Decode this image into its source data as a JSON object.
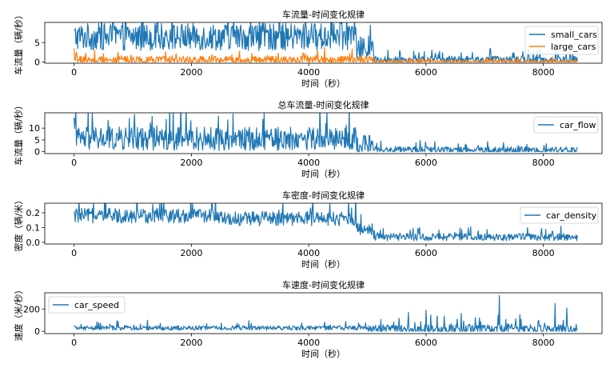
{
  "chart_data": [
    {
      "type": "line",
      "title": "车流量-时间变化规律",
      "xlabel": "时间（秒）",
      "ylabel": "车流量（辆/秒）",
      "xlim": [
        -500,
        9000
      ],
      "ylim": [
        -0.3,
        10.2
      ],
      "xticks": [
        0,
        2000,
        4000,
        6000,
        8000
      ],
      "xtick_labels": [
        "0",
        "2000",
        "4000",
        "6000",
        "8000"
      ],
      "yticks": [
        0,
        5
      ],
      "ytick_labels": [
        "0",
        "5"
      ],
      "legend": "upper right",
      "x_range": [
        0,
        8580
      ],
      "series": [
        {
          "name": "small_cars",
          "color": "#1f77b4",
          "level_segments": [
            [
              0,
              4800,
              6.5,
              3.5
            ],
            [
              4800,
              5100,
              3.5,
              3.0
            ],
            [
              5100,
              8580,
              0.6,
              0.9
            ]
          ]
        },
        {
          "name": "large_cars",
          "color": "#ff7f0e",
          "level_segments": [
            [
              0,
              5100,
              0.5,
              1.0
            ],
            [
              5100,
              8580,
              0.1,
              0.4
            ]
          ]
        }
      ]
    },
    {
      "type": "line",
      "title": "总车流量-时间变化规律",
      "xlabel": "时间（秒）",
      "ylabel": "车流量（辆/秒）",
      "xlim": [
        -500,
        9000
      ],
      "ylim": [
        -0.8,
        16.5
      ],
      "xticks": [
        0,
        2000,
        4000,
        6000,
        8000
      ],
      "xtick_labels": [
        "0",
        "2000",
        "4000",
        "6000",
        "8000"
      ],
      "yticks": [
        0,
        5,
        10
      ],
      "ytick_labels": [
        "0",
        "5",
        "10"
      ],
      "legend": "upper right",
      "x_range": [
        0,
        8580
      ],
      "series": [
        {
          "name": "car_flow",
          "color": "#1f77b4",
          "level_segments": [
            [
              0,
              4800,
              5.5,
              5.0
            ],
            [
              4800,
              5100,
              3.5,
              3.5
            ],
            [
              5100,
              8580,
              0.6,
              1.5
            ]
          ]
        }
      ]
    },
    {
      "type": "line",
      "title": "车密度-时间变化规律",
      "xlabel": "时间（秒）",
      "ylabel": "密度（辆/米）",
      "xlim": [
        -500,
        9000
      ],
      "ylim": [
        -0.012,
        0.265
      ],
      "xticks": [
        0,
        2000,
        4000,
        6000,
        8000
      ],
      "xtick_labels": [
        "0",
        "2000",
        "4000",
        "6000",
        "8000"
      ],
      "yticks": [
        0.0,
        0.1,
        0.2
      ],
      "ytick_labels": [
        "0.0",
        "0.1",
        "0.2"
      ],
      "legend": "upper right",
      "x_range": [
        0,
        8580
      ],
      "series": [
        {
          "name": "car_density",
          "color": "#1f77b4",
          "level_segments": [
            [
              0,
              2500,
              0.18,
              0.05
            ],
            [
              2500,
              4800,
              0.16,
              0.05
            ],
            [
              4800,
              5100,
              0.09,
              0.04
            ],
            [
              5100,
              8580,
              0.035,
              0.025
            ]
          ]
        }
      ]
    },
    {
      "type": "line",
      "title": "车速度-时间变化规律",
      "xlabel": "时间（秒）",
      "ylabel": "速度（米/秒）",
      "xlim": [
        -500,
        9000
      ],
      "ylim": [
        -20,
        345
      ],
      "xticks": [
        0,
        2000,
        4000,
        6000,
        8000
      ],
      "xtick_labels": [
        "0",
        "2000",
        "4000",
        "6000",
        "8000"
      ],
      "yticks": [
        0,
        200
      ],
      "ytick_labels": [
        "0",
        "200"
      ],
      "legend": "upper left",
      "x_range": [
        0,
        8580
      ],
      "series": [
        {
          "name": "car_speed",
          "color": "#1f77b4",
          "level_segments": [
            [
              0,
              5000,
              30,
              20
            ],
            [
              5000,
              8580,
              20,
              40
            ]
          ],
          "peaks": [
            [
              7250,
              320
            ],
            [
              8200,
              250
            ],
            [
              8400,
              210
            ],
            [
              6000,
              190
            ],
            [
              5700,
              170
            ],
            [
              6600,
              160
            ],
            [
              7600,
              150
            ],
            [
              1250,
              100
            ]
          ]
        }
      ]
    }
  ]
}
